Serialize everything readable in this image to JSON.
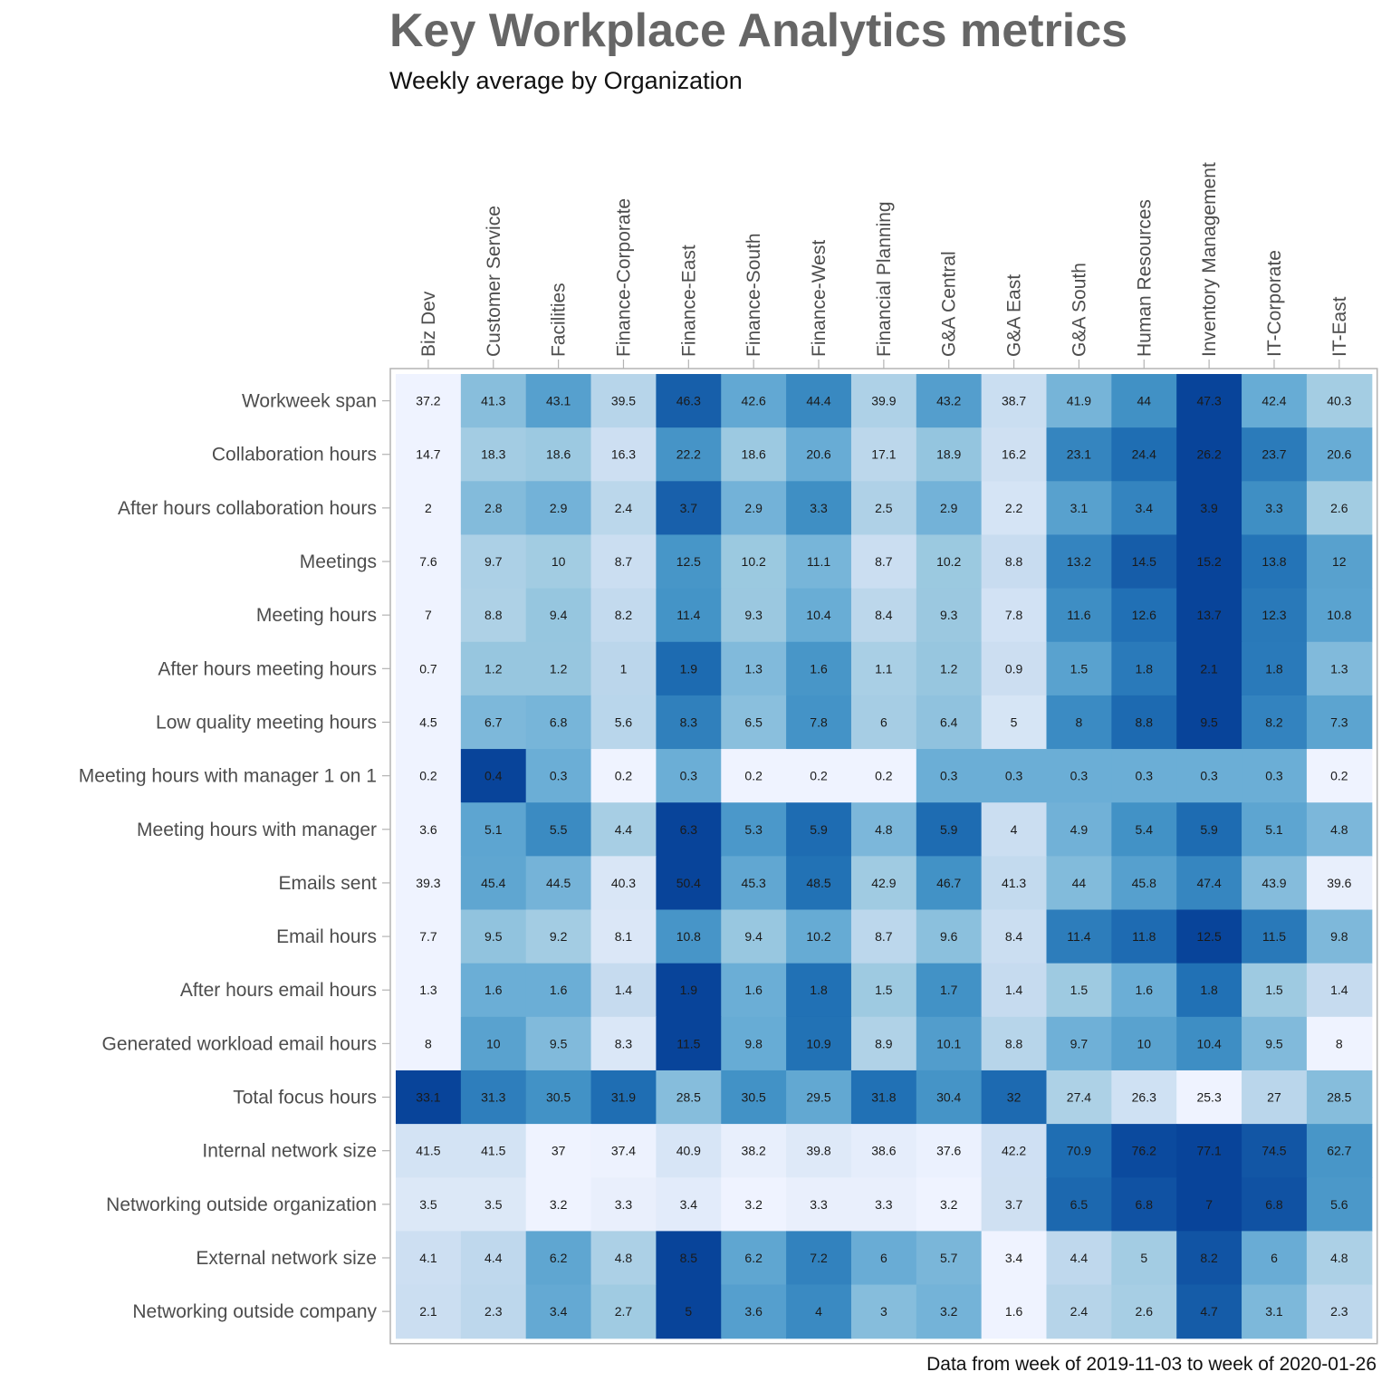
{
  "chart_data": {
    "type": "heatmap",
    "title": "Key Workplace Analytics metrics",
    "subtitle": "Weekly average by Organization",
    "caption": "Data from week of 2019-11-03 to week of 2020-01-26",
    "columns": [
      "Biz Dev",
      "Customer Service",
      "Facilities",
      "Finance-Corporate",
      "Finance-East",
      "Finance-South",
      "Finance-West",
      "Financial Planning",
      "G&A Central",
      "G&A East",
      "G&A South",
      "Human Resources",
      "Inventory Management",
      "IT-Corporate",
      "IT-East"
    ],
    "rows": [
      "Workweek span",
      "Collaboration hours",
      "After hours collaboration hours",
      "Meetings",
      "Meeting hours",
      "After hours meeting hours",
      "Low quality meeting hours",
      "Meeting hours with manager 1 on 1",
      "Meeting hours with manager",
      "Emails sent",
      "Email hours",
      "After hours email hours",
      "Generated workload email hours",
      "Total focus hours",
      "Internal network size",
      "Networking outside organization",
      "External network size",
      "Networking outside company"
    ],
    "values": [
      [
        37.2,
        41.3,
        43.1,
        39.5,
        46.3,
        42.6,
        44.4,
        39.9,
        43.2,
        38.7,
        41.9,
        44,
        47.3,
        42.4,
        40.3
      ],
      [
        14.7,
        18.3,
        18.6,
        16.3,
        22.2,
        18.6,
        20.6,
        17.1,
        18.9,
        16.2,
        23.1,
        24.4,
        26.2,
        23.7,
        20.6
      ],
      [
        2,
        2.8,
        2.9,
        2.4,
        3.7,
        2.9,
        3.3,
        2.5,
        2.9,
        2.2,
        3.1,
        3.4,
        3.9,
        3.3,
        2.6
      ],
      [
        7.6,
        9.7,
        10,
        8.7,
        12.5,
        10.2,
        11.1,
        8.7,
        10.2,
        8.8,
        13.2,
        14.5,
        15.2,
        13.8,
        12
      ],
      [
        7,
        8.8,
        9.4,
        8.2,
        11.4,
        9.3,
        10.4,
        8.4,
        9.3,
        7.8,
        11.6,
        12.6,
        13.7,
        12.3,
        10.8
      ],
      [
        0.7,
        1.2,
        1.2,
        1,
        1.9,
        1.3,
        1.6,
        1.1,
        1.2,
        0.9,
        1.5,
        1.8,
        2.1,
        1.8,
        1.3
      ],
      [
        4.5,
        6.7,
        6.8,
        5.6,
        8.3,
        6.5,
        7.8,
        6,
        6.4,
        5,
        8,
        8.8,
        9.5,
        8.2,
        7.3
      ],
      [
        0.2,
        0.4,
        0.3,
        0.2,
        0.3,
        0.2,
        0.2,
        0.2,
        0.3,
        0.3,
        0.3,
        0.3,
        0.3,
        0.3,
        0.2
      ],
      [
        3.6,
        5.1,
        5.5,
        4.4,
        6.3,
        5.3,
        5.9,
        4.8,
        5.9,
        4,
        4.9,
        5.4,
        5.9,
        5.1,
        4.8
      ],
      [
        39.3,
        45.4,
        44.5,
        40.3,
        50.4,
        45.3,
        48.5,
        42.9,
        46.7,
        41.3,
        44,
        45.8,
        47.4,
        43.9,
        39.6
      ],
      [
        7.7,
        9.5,
        9.2,
        8.1,
        10.8,
        9.4,
        10.2,
        8.7,
        9.6,
        8.4,
        11.4,
        11.8,
        12.5,
        11.5,
        9.8
      ],
      [
        1.3,
        1.6,
        1.6,
        1.4,
        1.9,
        1.6,
        1.8,
        1.5,
        1.7,
        1.4,
        1.5,
        1.6,
        1.8,
        1.5,
        1.4
      ],
      [
        8,
        10,
        9.5,
        8.3,
        11.5,
        9.8,
        10.9,
        8.9,
        10.1,
        8.8,
        9.7,
        10,
        10.4,
        9.5,
        8
      ],
      [
        33.1,
        31.3,
        30.5,
        31.9,
        28.5,
        30.5,
        29.5,
        31.8,
        30.4,
        32,
        27.4,
        26.3,
        25.3,
        27,
        28.5
      ],
      [
        41.5,
        41.5,
        37,
        37.4,
        40.9,
        38.2,
        39.8,
        38.6,
        37.6,
        42.2,
        70.9,
        76.2,
        77.1,
        74.5,
        62.7
      ],
      [
        3.5,
        3.5,
        3.2,
        3.3,
        3.4,
        3.2,
        3.3,
        3.3,
        3.2,
        3.7,
        6.5,
        6.8,
        7,
        6.8,
        5.6
      ],
      [
        4.1,
        4.4,
        6.2,
        4.8,
        8.5,
        6.2,
        7.2,
        6,
        5.7,
        3.4,
        4.4,
        5,
        8.2,
        6,
        4.8
      ],
      [
        2.1,
        2.3,
        3.4,
        2.7,
        5,
        3.6,
        4,
        3,
        3.2,
        1.6,
        2.4,
        2.6,
        4.7,
        3.1,
        2.3
      ]
    ],
    "color_scale": "per-row, light blue (low) to dark blue (high)",
    "colors": {
      "low": "#eff3ff",
      "high": "#08449a"
    }
  }
}
